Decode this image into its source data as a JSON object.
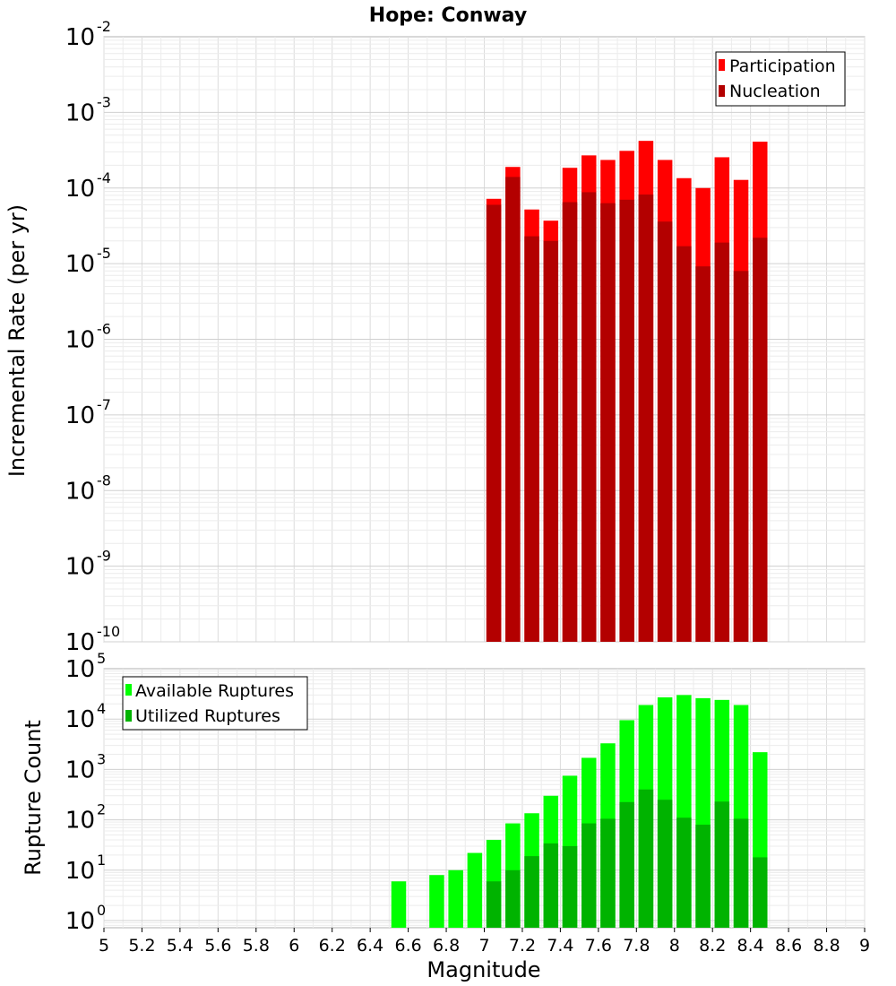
{
  "chart_data": [
    {
      "type": "bar",
      "title": "Hope: Conway",
      "ylabel": "Incremental Rate (per yr)",
      "xlabel": "",
      "xlim": [
        5,
        9
      ],
      "ylim": [
        1e-10,
        0.01
      ],
      "yscale": "log",
      "ytick_exponents": [
        -10,
        -9,
        -8,
        -7,
        -6,
        -5,
        -4,
        -3,
        -2
      ],
      "ytick_base": "10",
      "grid": true,
      "legend_position": "top-right",
      "x": [
        7.05,
        7.15,
        7.25,
        7.35,
        7.45,
        7.55,
        7.65,
        7.75,
        7.85,
        7.95,
        8.05,
        8.15,
        8.25,
        8.35,
        8.45
      ],
      "series": [
        {
          "name": "Participation",
          "color": "#ff0000",
          "values": [
            7.2e-05,
            0.00019,
            5.2e-05,
            3.7e-05,
            0.000185,
            0.00027,
            0.000235,
            0.00031,
            0.00042,
            0.000235,
            0.000135,
            0.0001,
            0.000255,
            0.000128,
            0.00041
          ]
        },
        {
          "name": "Nucleation",
          "color": "#b30000",
          "values": [
            6e-05,
            0.00014,
            2.3e-05,
            2e-05,
            6.5e-05,
            8.8e-05,
            6.3e-05,
            7e-05,
            8.2e-05,
            3.6e-05,
            1.7e-05,
            9.2e-06,
            1.9e-05,
            8e-06,
            2.2e-05
          ]
        }
      ]
    },
    {
      "type": "bar",
      "title": "",
      "ylabel": "Rupture Count",
      "xlabel": "Magnitude",
      "xlim": [
        5,
        9
      ],
      "xticks": [
        "5",
        "5.2",
        "5.4",
        "5.6",
        "5.8",
        "6",
        "6.2",
        "6.4",
        "6.6",
        "6.8",
        "7",
        "7.2",
        "7.4",
        "7.6",
        "7.8",
        "8",
        "8.2",
        "8.4",
        "8.6",
        "8.8",
        "9"
      ],
      "ylim": [
        0.72,
        100000.0
      ],
      "yscale": "log",
      "ytick_exponents": [
        0,
        1,
        2,
        3,
        4,
        5
      ],
      "ytick_base": "10",
      "grid": true,
      "legend_position": "top-left",
      "x": [
        6.55,
        6.75,
        6.85,
        6.95,
        7.05,
        7.15,
        7.25,
        7.35,
        7.45,
        7.55,
        7.65,
        7.75,
        7.85,
        7.95,
        8.05,
        8.15,
        8.25,
        8.35,
        8.45
      ],
      "series": [
        {
          "name": "Available Ruptures",
          "color": "#00ff00",
          "values": [
            6,
            8,
            10,
            22,
            40,
            85,
            135,
            300,
            750,
            1700,
            3300,
            9500,
            19000,
            27000,
            30000,
            26000,
            24000,
            19000,
            2200
          ]
        },
        {
          "name": "Utilized Ruptures",
          "color": "#00b300",
          "values": [
            0,
            0,
            0,
            0,
            6,
            10,
            19,
            34,
            30,
            85,
            105,
            225,
            400,
            250,
            110,
            80,
            230,
            105,
            18
          ]
        }
      ]
    }
  ]
}
